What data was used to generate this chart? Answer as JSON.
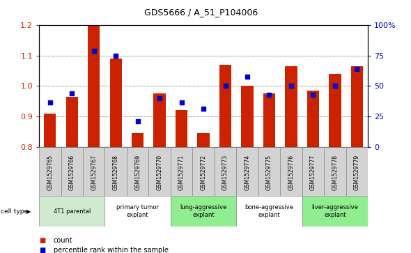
{
  "title": "GDS5666 / A_51_P104006",
  "samples": [
    "GSM1529765",
    "GSM1529766",
    "GSM1529767",
    "GSM1529768",
    "GSM1529769",
    "GSM1529770",
    "GSM1529771",
    "GSM1529772",
    "GSM1529773",
    "GSM1529774",
    "GSM1529775",
    "GSM1529776",
    "GSM1529777",
    "GSM1529778",
    "GSM1529779"
  ],
  "bar_values": [
    0.91,
    0.965,
    1.2,
    1.09,
    0.845,
    0.975,
    0.92,
    0.845,
    1.07,
    1.0,
    0.975,
    1.065,
    0.985,
    1.04,
    1.065
  ],
  "dot_values": [
    0.945,
    0.975,
    1.115,
    1.1,
    0.885,
    0.96,
    0.945,
    0.925,
    1.0,
    1.03,
    0.97,
    1.0,
    0.97,
    1.0,
    1.055
  ],
  "ylim": [
    0.8,
    1.2
  ],
  "yticks": [
    0.8,
    0.9,
    1.0,
    1.1,
    1.2
  ],
  "right_yticks": [
    0,
    25,
    50,
    75,
    100
  ],
  "right_ytick_labels": [
    "0",
    "25",
    "50",
    "75",
    "100%"
  ],
  "bar_color": "#CC2200",
  "dot_color": "#0000CC",
  "group_data": [
    {
      "label": "4T1 parental",
      "start": 0,
      "end": 2,
      "color": "#d0ead0"
    },
    {
      "label": "primary tumor\nexplant",
      "start": 3,
      "end": 5,
      "color": "#ffffff"
    },
    {
      "label": "lung-aggressive\nexplant",
      "start": 6,
      "end": 8,
      "color": "#90ee90"
    },
    {
      "label": "bone-aggressive\nexplant",
      "start": 9,
      "end": 11,
      "color": "#ffffff"
    },
    {
      "label": "liver-aggressive\nexplant",
      "start": 12,
      "end": 14,
      "color": "#90ee90"
    }
  ],
  "sample_bg": "#d3d3d3",
  "legend_count_label": "count",
  "legend_pct_label": "percentile rank within the sample",
  "cell_type_label": "cell type"
}
